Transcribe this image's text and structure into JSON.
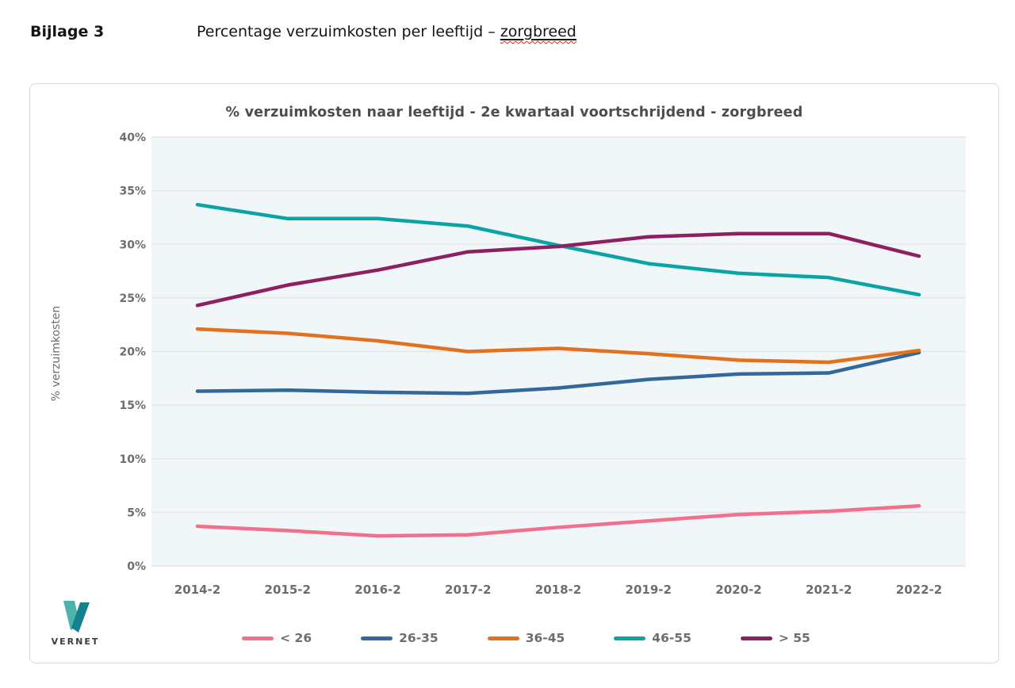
{
  "document": {
    "heading_label": "Bijlage 3",
    "heading_text": "Percentage verzuimkosten per leeftijd – ",
    "heading_underlined_word": "zorgbreed",
    "spellcheck_underline_color": "#e0281e"
  },
  "logo": {
    "text": "VERNET",
    "color_light": "#4db3ab",
    "color_dark": "#14828c"
  },
  "chart_data": {
    "type": "line",
    "title": "% verzuimkosten naar leeftijd - 2e kwartaal voortschrijdend - zorgbreed",
    "xlabel": "",
    "ylabel": "% verzuimkosten",
    "categories": [
      "2014-2",
      "2015-2",
      "2016-2",
      "2017-2",
      "2018-2",
      "2019-2",
      "2020-2",
      "2021-2",
      "2022-2"
    ],
    "ylim": [
      0,
      40
    ],
    "y_step": 5,
    "y_tick_suffix": "%",
    "grid": true,
    "legend_position": "bottom",
    "plot_bg": "#f1f6f9",
    "grid_color": "#e2e6e9",
    "axis_text_color": "#6d6d6d",
    "title_color": "#4d4d4d",
    "series": [
      {
        "name": "< 26",
        "color": "#f2708c",
        "values": [
          3.7,
          3.3,
          2.8,
          2.9,
          3.6,
          4.2,
          4.8,
          5.1,
          5.6
        ]
      },
      {
        "name": "26-35",
        "color": "#33699a",
        "values": [
          16.3,
          16.4,
          16.2,
          16.1,
          16.6,
          17.4,
          17.9,
          18.0,
          19.9
        ]
      },
      {
        "name": "36-45",
        "color": "#e2711f",
        "values": [
          22.1,
          21.7,
          21.0,
          20.0,
          20.3,
          19.8,
          19.2,
          19.0,
          20.1
        ]
      },
      {
        "name": "46-55",
        "color": "#0aa3a6",
        "values": [
          33.7,
          32.4,
          32.4,
          31.7,
          29.9,
          28.2,
          27.3,
          26.9,
          25.3
        ]
      },
      {
        "name": "> 55",
        "color": "#8e2060",
        "values": [
          24.3,
          26.2,
          27.6,
          29.3,
          29.8,
          30.7,
          31.0,
          31.0,
          28.9
        ]
      }
    ]
  }
}
